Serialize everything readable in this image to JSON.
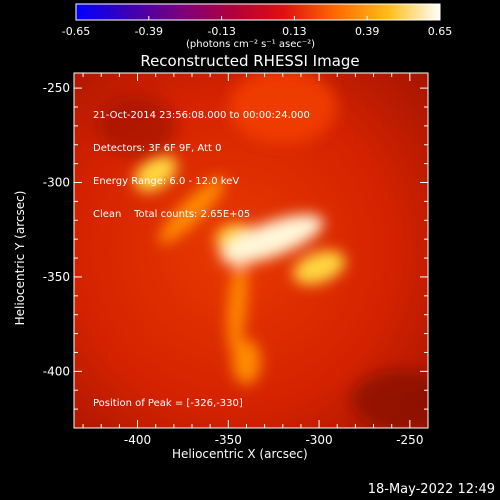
{
  "colorbar": {
    "tick_labels": [
      "-0.65",
      "-0.39",
      "-0.13",
      "0.13",
      "0.39",
      "0.65"
    ],
    "range": [
      -0.65,
      0.65
    ],
    "units_text": "(photons cm⁻² s⁻¹ asec⁻²)",
    "colormap": [
      "#0000ff",
      "#3b00b4",
      "#7a007e",
      "#b0003c",
      "#e01010",
      "#ff6a00",
      "#ffbd18",
      "#ffffff"
    ]
  },
  "image": {
    "title": "Reconstructed RHESSI Image",
    "xlabel": "Heliocentric X (arcsec)",
    "ylabel": "Heliocentric Y (arcsec)",
    "xlim": [
      -435,
      -240
    ],
    "ylim": [
      -430,
      -242
    ],
    "xticks": [
      "-400",
      "-350",
      "-300",
      "-250"
    ],
    "yticks": [
      "-250",
      "-300",
      "-350",
      "-400"
    ],
    "xtick_values": [
      -400,
      -350,
      -300,
      -250
    ],
    "ytick_values": [
      -250,
      -300,
      -350,
      -400
    ],
    "background_color": "#d42200",
    "info_lines": [
      "21-Oct-2014 23:56:08.000 to 00:00:24.000",
      "Detectors: 3F 6F 9F, Att 0",
      "Energy Range: 6.0 - 12.0 keV",
      "Clean    Total counts: 2.65E+05"
    ],
    "peak_text": "Position of Peak = [-326,-330]",
    "sources": [
      {
        "x": -326,
        "y": -330,
        "rx": 30,
        "ry": 9,
        "angle": -20,
        "level": 1.0
      },
      {
        "x": -300,
        "y": -345,
        "rx": 15,
        "ry": 8,
        "angle": -20,
        "level": 0.8
      },
      {
        "x": -390,
        "y": -295,
        "rx": 13,
        "ry": 8,
        "angle": -35,
        "level": 0.75
      },
      {
        "x": -370,
        "y": -315,
        "rx": 25,
        "ry": 6,
        "angle": -45,
        "level": 0.55
      },
      {
        "x": -345,
        "y": -330,
        "rx": 12,
        "ry": 8,
        "angle": 0,
        "level": 0.8
      },
      {
        "x": -345,
        "y": -365,
        "rx": 5,
        "ry": 25,
        "angle": 5,
        "level": 0.6
      },
      {
        "x": -340,
        "y": -395,
        "rx": 8,
        "ry": 12,
        "angle": 0,
        "level": 0.55
      },
      {
        "x": -320,
        "y": -260,
        "rx": 30,
        "ry": 20,
        "angle": 0,
        "level": 0.25
      }
    ]
  },
  "footer": {
    "timestamp": "18-May-2022 12:49"
  }
}
